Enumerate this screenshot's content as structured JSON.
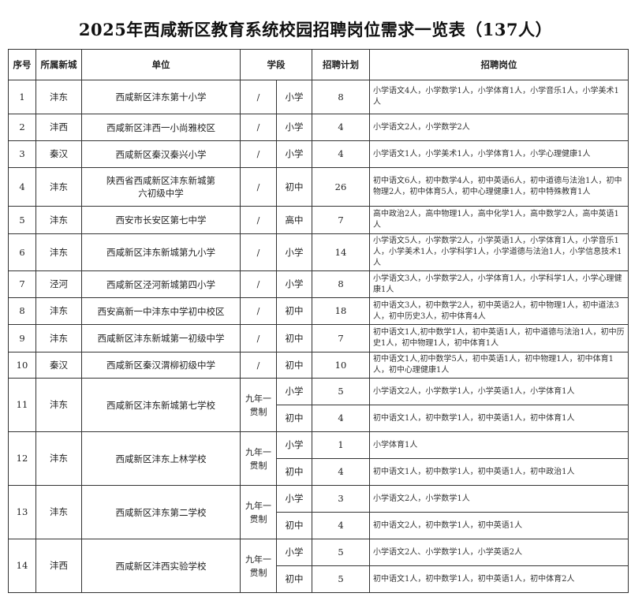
{
  "title": "2025年西咸新区教育系统校园招聘岗位需求一览表（137人）",
  "headers": [
    "序号",
    "所属新城",
    "单位",
    "学段",
    "招聘计划",
    "招聘岗位"
  ],
  "rows": [
    {
      "no": "1",
      "city": "沣东",
      "unit": "西咸新区沣东第十小学",
      "type": "/",
      "sections": [
        {
          "stage": "小学",
          "plan": "8",
          "positions": "小学语文4人，小学数学1人，小学体育1人，小学音乐1人，小学美术1人"
        }
      ]
    },
    {
      "no": "2",
      "city": "沣西",
      "unit": "西咸新区沣西一小尚雅校区",
      "type": "/",
      "sections": [
        {
          "stage": "小学",
          "plan": "4",
          "positions": "小学语文2人，小学数学2人"
        }
      ]
    },
    {
      "no": "3",
      "city": "秦汉",
      "unit": "西咸新区秦汉秦兴小学",
      "type": "/",
      "sections": [
        {
          "stage": "小学",
          "plan": "4",
          "positions": "小学语文1人，小学美术1人，小学体育1人，小学心理健康1人"
        }
      ]
    },
    {
      "no": "4",
      "city": "沣东",
      "unit": "陕西省西咸新区沣东新城第六初级中学",
      "type": "/",
      "sections": [
        {
          "stage": "初中",
          "plan": "26",
          "positions": "初中语文6人，初中数学4人，初中英语6人，初中道德与法治1人，初中物理2人，初中体育5人，初中心理健康1人，初中特殊教育1人"
        }
      ]
    },
    {
      "no": "5",
      "city": "沣东",
      "unit": "西安市长安区第七中学",
      "type": "/",
      "sections": [
        {
          "stage": "高中",
          "plan": "7",
          "positions": "高中政治2人，高中物理1人，高中化学1人，高中数学2人，高中英语1人"
        }
      ]
    },
    {
      "no": "6",
      "city": "沣东",
      "unit": "西咸新区沣东新城第九小学",
      "type": "/",
      "sections": [
        {
          "stage": "小学",
          "plan": "14",
          "positions": "小学语文5人，小学数学2人，小学英语1人，小学体育1人，小学音乐1人，小学美术1人，小学科学1人，小学道德与法治1人，小学信息技术1人"
        }
      ]
    },
    {
      "no": "7",
      "city": "泾河",
      "unit": "西咸新区泾河新城第四小学",
      "type": "/",
      "sections": [
        {
          "stage": "小学",
          "plan": "8",
          "positions": "小学语文3人，小学数学2人，小学体育1人，小学科学1人，小学心理健康1人"
        }
      ]
    },
    {
      "no": "8",
      "city": "沣东",
      "unit": "西安高新一中沣东中学初中校区",
      "type": "/",
      "sections": [
        {
          "stage": "初中",
          "plan": "18",
          "positions": "初中语文3人，初中数学2人，初中英语2人，初中物理1人，初中道法3人，初中历史3人，初中体育4人"
        }
      ]
    },
    {
      "no": "9",
      "city": "沣东",
      "unit": "西咸新区沣东新城第一初级中学",
      "type": "/",
      "sections": [
        {
          "stage": "初中",
          "plan": "7",
          "positions": "初中语文1人,初中数学1人，初中英语1人，初中道德与法治1人，初中历史1人，初中物理1人，初中体育1人"
        }
      ]
    },
    {
      "no": "10",
      "city": "秦汉",
      "unit": "西咸新区秦汉渭柳初级中学",
      "type": "/",
      "sections": [
        {
          "stage": "初中",
          "plan": "10",
          "positions": "初中语文1人,初中数学5人，初中英语1人，初中物理1人，初中体育1人，初中心理健康1人"
        }
      ]
    },
    {
      "no": "11",
      "city": "沣东",
      "unit": "西咸新区沣东新城第七学校",
      "type": "九年一贯制",
      "sections": [
        {
          "stage": "小学",
          "plan": "5",
          "positions": "小学语文2人，小学数学1人，小学英语1人，小学体育1人"
        },
        {
          "stage": "初中",
          "plan": "4",
          "positions": "初中语文1人，初中数学1人，初中英语1人，初中体育1人"
        }
      ]
    },
    {
      "no": "12",
      "city": "沣东",
      "unit": "西咸新区沣东上林学校",
      "type": "九年一贯制",
      "sections": [
        {
          "stage": "小学",
          "plan": "1",
          "positions": "小学体育1人"
        },
        {
          "stage": "初中",
          "plan": "4",
          "positions": "初中语文1人，初中数学1人，初中英语1人，初中政治1人"
        }
      ]
    },
    {
      "no": "13",
      "city": "沣东",
      "unit": "西咸新区沣东第二学校",
      "type": "九年一贯制",
      "sections": [
        {
          "stage": "小学",
          "plan": "3",
          "positions": "小学语文2人，小学数学1人"
        },
        {
          "stage": "初中",
          "plan": "4",
          "positions": "初中语文2人，初中数学1人，初中英语1人"
        }
      ]
    },
    {
      "no": "14",
      "city": "沣西",
      "unit": "西咸新区沣西实验学校",
      "type": "九年一贯制",
      "sections": [
        {
          "stage": "小学",
          "plan": "5",
          "positions": "小学语文2人、小学数学1人，小学英语2人"
        },
        {
          "stage": "初中",
          "plan": "5",
          "positions": "初中语文1人，初中数学1人，初中英语1人，初中体育2人"
        }
      ]
    }
  ]
}
